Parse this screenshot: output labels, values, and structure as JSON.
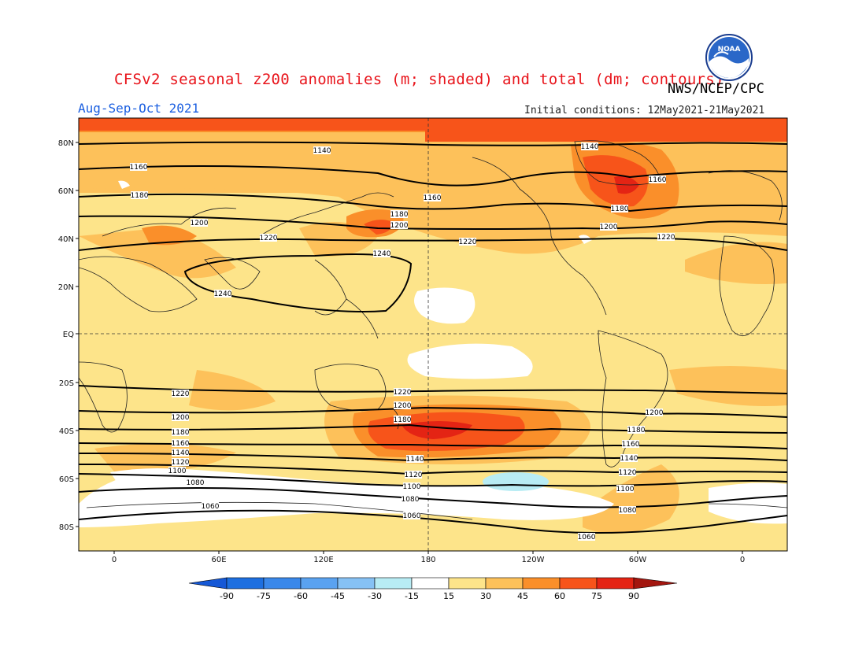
{
  "header": {
    "title": "CFSv2 seasonal z200 anomalies (m; shaded) and total (dm; contours)",
    "agency": "NWS/NCEP/CPC",
    "period": "Aug-Sep-Oct 2021",
    "initial_conditions": "Initial conditions: 12May2021-21May2021",
    "logo_text": "NOAA"
  },
  "colors": {
    "title": "#e8141b",
    "period": "#1b5fe0",
    "shade_15_30": "#fde48a",
    "shade_30_45": "#fdc15a",
    "shade_45_60": "#fa8f2a",
    "shade_60_75": "#f7541a",
    "shade_75_90": "#e42414",
    "neutral": "#ffffff",
    "neg_15_30": "#b8ecf4"
  },
  "map": {
    "lat_labels": [
      "80N",
      "60N",
      "40N",
      "20N",
      "EQ",
      "20S",
      "40S",
      "60S",
      "80S"
    ],
    "lon_labels": [
      "0",
      "60E",
      "120E",
      "180",
      "120W",
      "60W",
      "0"
    ]
  },
  "contours": [
    {
      "level": "1140",
      "labels": [
        "1140",
        "1140"
      ]
    },
    {
      "level": "1160",
      "labels": [
        "1160",
        "1160",
        "1160"
      ]
    },
    {
      "level": "1180",
      "labels": [
        "1180",
        "1180",
        "1180"
      ]
    },
    {
      "level": "1200",
      "labels": [
        "1200",
        "1200",
        "1200"
      ]
    },
    {
      "level": "1220",
      "labels": [
        "1220",
        "1220",
        "1220"
      ]
    },
    {
      "level": "1240",
      "labels": [
        "1240",
        "1240"
      ]
    },
    {
      "level": "1220",
      "labels": [
        "1220",
        "1220"
      ]
    },
    {
      "level": "1200",
      "labels": [
        "1200",
        "1200",
        "1200"
      ]
    },
    {
      "level": "1180",
      "labels": [
        "1180",
        "1180",
        "1180"
      ]
    },
    {
      "level": "1160",
      "labels": [
        "1160",
        "1160"
      ]
    },
    {
      "level": "1140",
      "labels": [
        "1140",
        "1140",
        "1140"
      ]
    },
    {
      "level": "1120",
      "labels": [
        "1120",
        "1120",
        "1120"
      ]
    },
    {
      "level": "1100",
      "labels": [
        "1100",
        "1100",
        "1100"
      ]
    },
    {
      "level": "1080",
      "labels": [
        "1080",
        "1080",
        "1080"
      ]
    },
    {
      "level": "1060",
      "labels": [
        "1060",
        "1060",
        "1060"
      ]
    }
  ],
  "colorbar": {
    "labels": [
      "-90",
      "-75",
      "-60",
      "-45",
      "-30",
      "-15",
      "15",
      "30",
      "45",
      "60",
      "75",
      "90"
    ],
    "colors": [
      "#1d6fe0",
      "#3a88ea",
      "#5aa2f0",
      "#86c1f4",
      "#b8ecf4",
      "#ffffff",
      "#fde48a",
      "#fdc15a",
      "#fa8f2a",
      "#f7541a",
      "#e42414"
    ],
    "low_end": "#1558d6",
    "high_end": "#a3160f"
  }
}
